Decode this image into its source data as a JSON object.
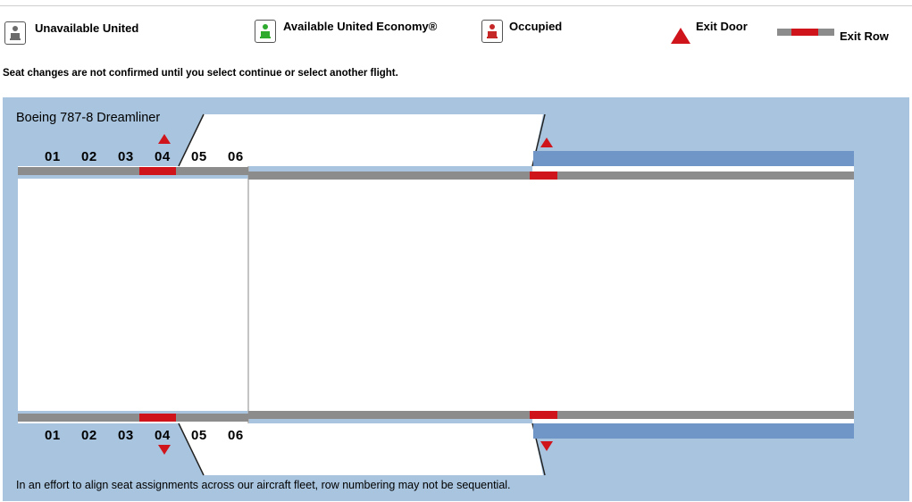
{
  "legend": {
    "unavailable": "Unavailable United",
    "available": "Available United Economy®",
    "occupied": "Occupied",
    "exit_door": "Exit Door",
    "exit_row": "Exit Row"
  },
  "notice": "Seat changes are not confirmed until you select continue or select another flight.",
  "aircraft": {
    "name": "Boeing 787-8 Dreamliner",
    "rows": [
      "01",
      "02",
      "03",
      "04",
      "05",
      "06"
    ]
  },
  "footnote": "In an effort to align seat assignments across our aircraft fleet, row numbering may not be sequential.",
  "colors": {
    "exit": "#d0141c",
    "available": "#2eaa2e",
    "unavailable": "#6b6b6b",
    "map_background": "#a8c4de"
  }
}
